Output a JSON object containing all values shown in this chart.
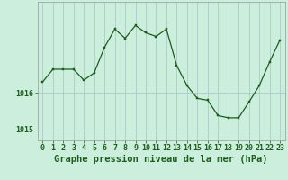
{
  "x": [
    0,
    1,
    2,
    3,
    4,
    5,
    6,
    7,
    8,
    9,
    10,
    11,
    12,
    13,
    14,
    15,
    16,
    17,
    18,
    19,
    20,
    21,
    22,
    23
  ],
  "y": [
    1016.3,
    1016.65,
    1016.65,
    1016.65,
    1016.35,
    1016.55,
    1017.25,
    1017.75,
    1017.5,
    1017.85,
    1017.65,
    1017.55,
    1017.75,
    1016.75,
    1016.2,
    1015.85,
    1015.8,
    1015.38,
    1015.32,
    1015.32,
    1015.75,
    1016.2,
    1016.85,
    1017.45
  ],
  "line_color": "#1e5c1e",
  "marker_color": "#1e5c1e",
  "bg_color": "#cceedd",
  "grid_color": "#aacccc",
  "border_color": "#999999",
  "xlabel": "Graphe pression niveau de la mer (hPa)",
  "xlim_min": -0.5,
  "xlim_max": 23.5,
  "ylim_min": 1014.7,
  "ylim_max": 1018.5,
  "yticks": [
    1015,
    1016
  ],
  "tick_fontsize": 6,
  "xlabel_fontsize": 7.5
}
